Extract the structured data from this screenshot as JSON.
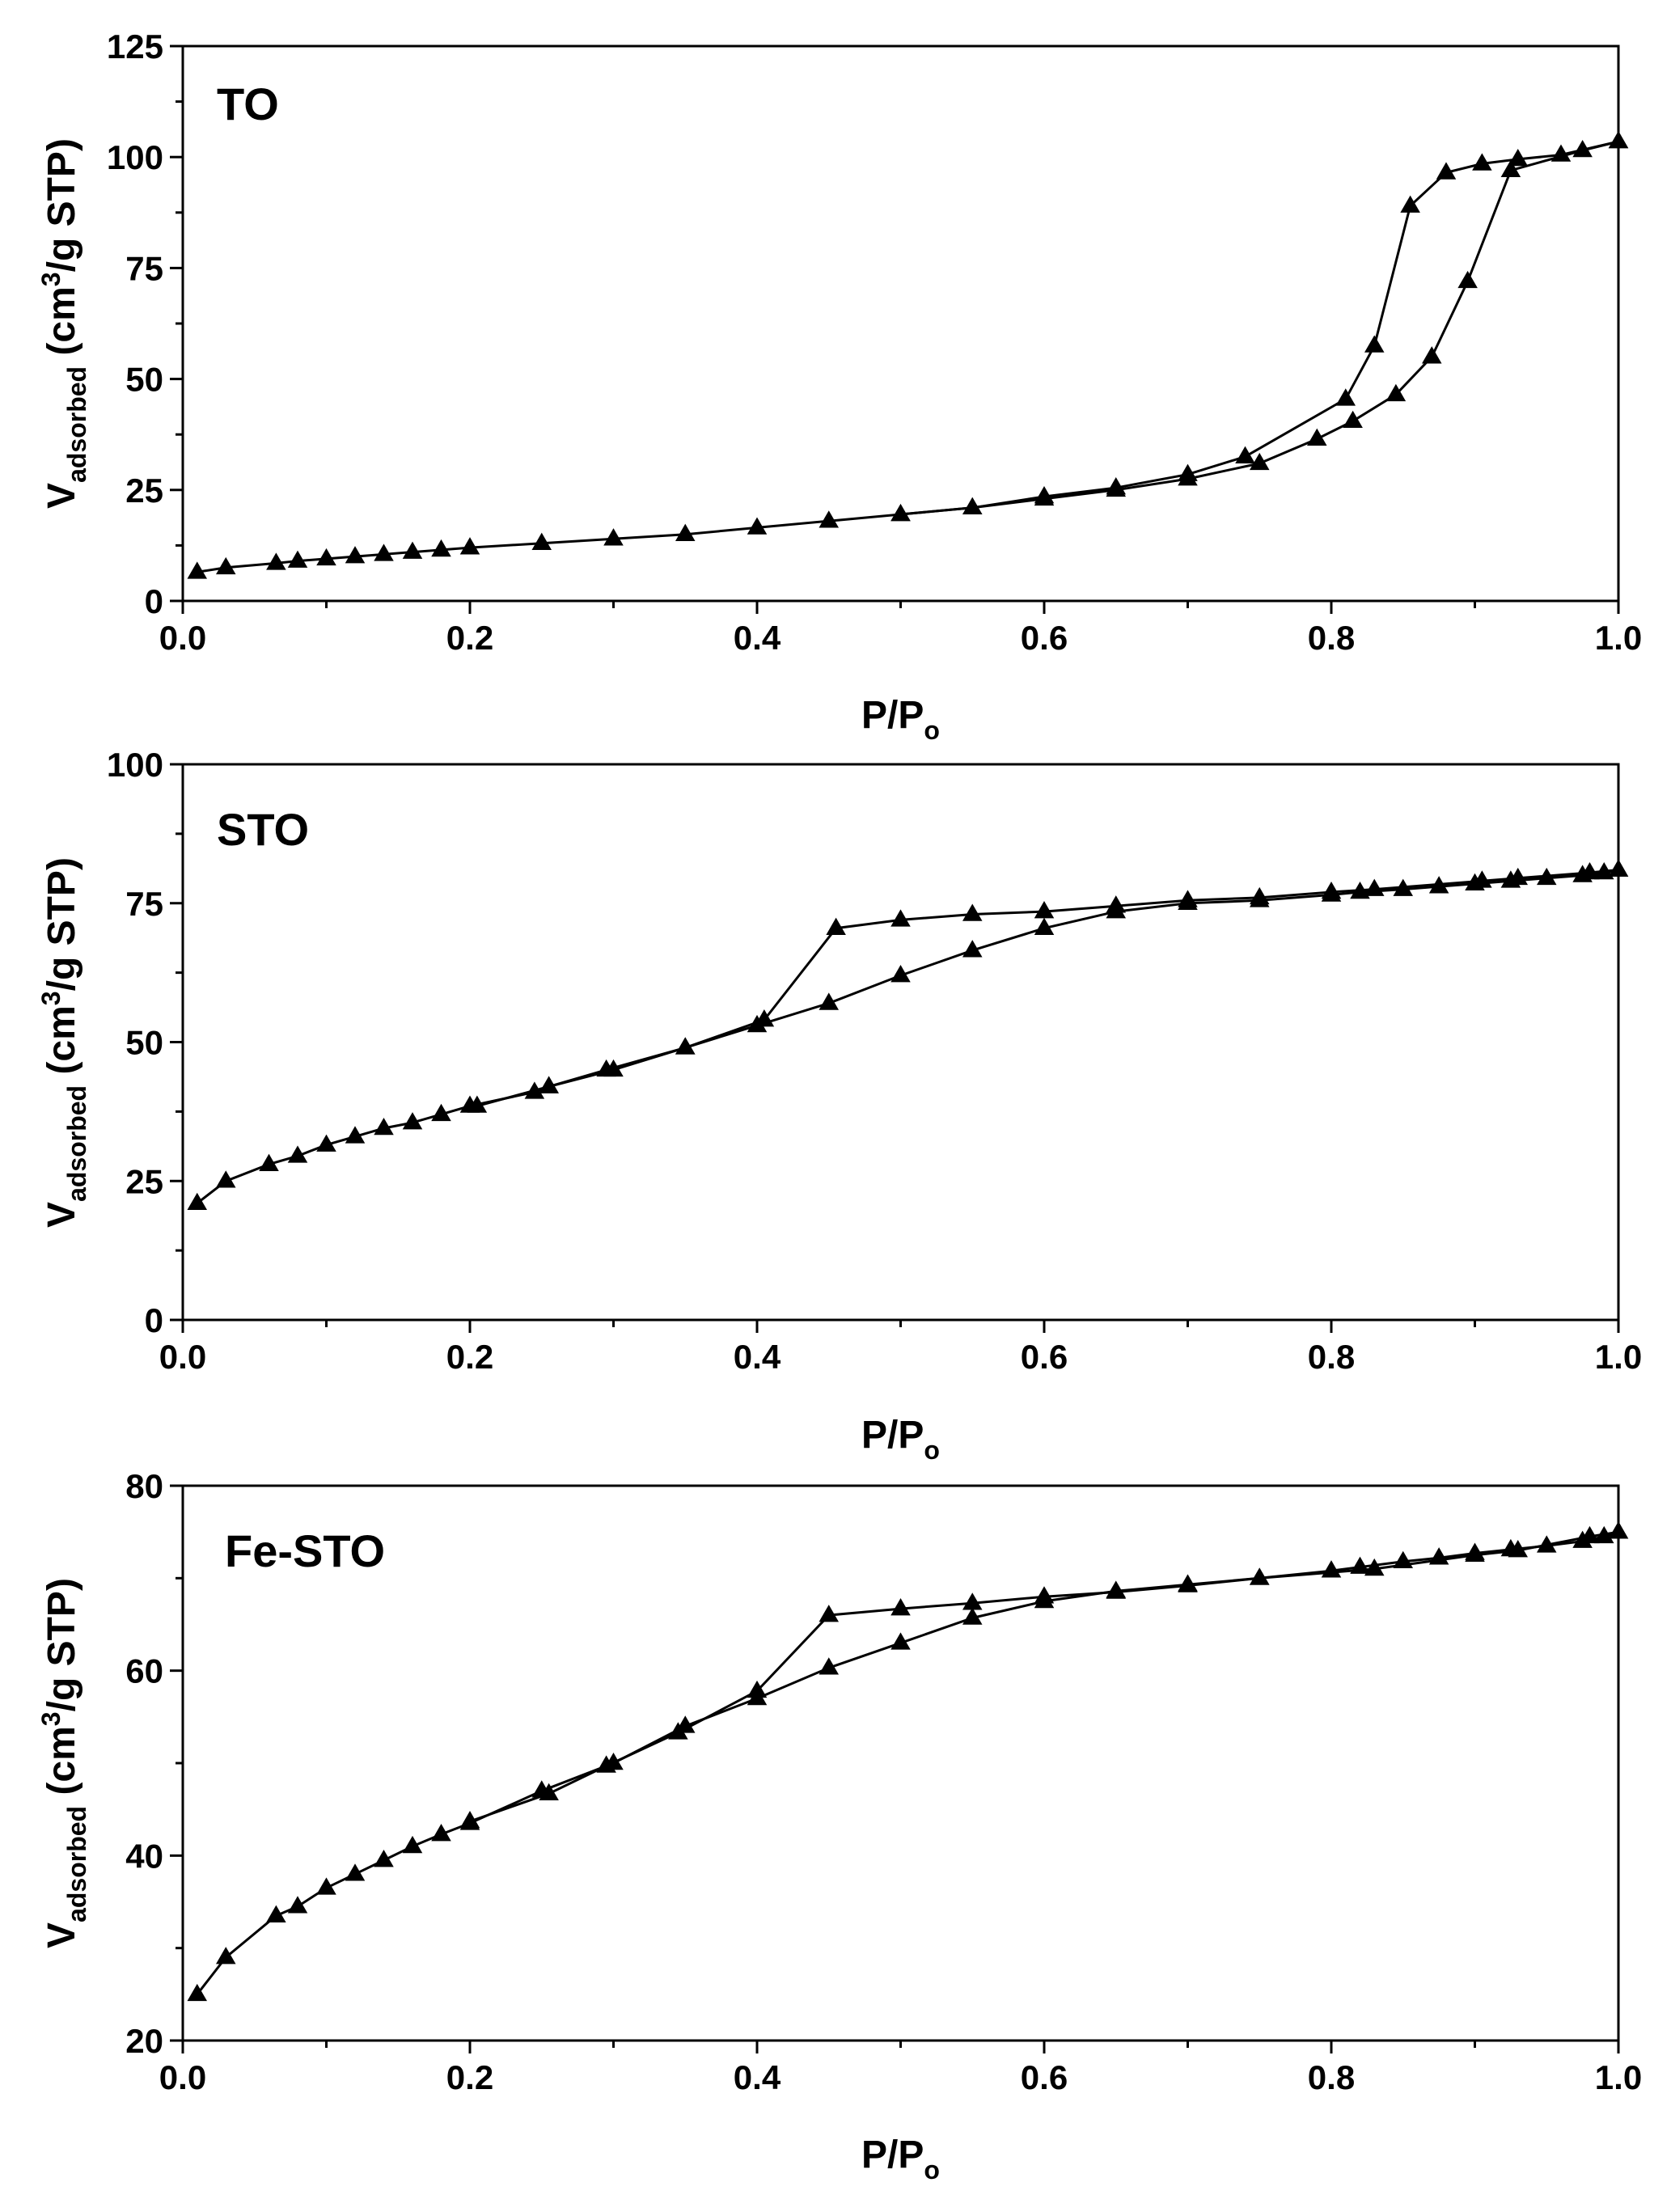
{
  "chart_data": [
    {
      "type": "line",
      "title": "",
      "label": "TO",
      "xlabel": "P/P",
      "xlabel_sub": "o",
      "ylabel_main": "V",
      "ylabel_sub": "adsorbed",
      "ylabel_rest": " (cm",
      "ylabel_sup": "3",
      "ylabel_end": "/g STP)",
      "xlim": [
        0,
        1.0
      ],
      "ylim": [
        0,
        125
      ],
      "xticks": [
        "0.0",
        "0.2",
        "0.4",
        "0.6",
        "0.8",
        "1.0"
      ],
      "yticks": [
        "0",
        "25",
        "50",
        "75",
        "100",
        "125"
      ],
      "marker": "triangle",
      "color": "#000000",
      "series": [
        {
          "x": [
            0.01,
            0.03,
            0.065,
            0.08,
            0.1,
            0.12,
            0.14,
            0.16,
            0.18,
            0.2,
            0.25,
            0.3,
            0.35,
            0.4,
            0.45,
            0.5,
            0.55,
            0.6,
            0.65,
            0.7,
            0.75,
            0.79,
            0.815,
            0.845,
            0.87,
            0.895,
            0.925,
            0.975,
            1.0
          ],
          "y": [
            6.5,
            7.5,
            8.5,
            9,
            9.5,
            10,
            10.5,
            11,
            11.5,
            12,
            13,
            14,
            15,
            16.5,
            18,
            19.5,
            21,
            23,
            25,
            27.5,
            31,
            36.5,
            40.5,
            46.5,
            55,
            72,
            97,
            101.5,
            103.5
          ]
        },
        {
          "x": [
            1.0,
            0.96,
            0.93,
            0.905,
            0.88,
            0.855,
            0.83,
            0.81,
            0.74,
            0.7,
            0.65,
            0.6,
            0.55,
            0.5
          ],
          "y": [
            103.5,
            100.5,
            99.5,
            98.5,
            96.5,
            89,
            57.5,
            45.5,
            32.5,
            28.5,
            25.5,
            23.5,
            21,
            19.5
          ]
        }
      ]
    },
    {
      "type": "line",
      "title": "",
      "label": "STO",
      "xlabel": "P/P",
      "xlabel_sub": "o",
      "ylabel_main": "V",
      "ylabel_sub": "adsorbed",
      "ylabel_rest": " (cm",
      "ylabel_sup": "3",
      "ylabel_end": "/g STP)",
      "xlim": [
        0,
        1.0
      ],
      "ylim": [
        0,
        100
      ],
      "xticks": [
        "0.0",
        "0.2",
        "0.4",
        "0.6",
        "0.8",
        "1.0"
      ],
      "yticks": [
        "0",
        "25",
        "50",
        "75",
        "100"
      ],
      "marker": "triangle",
      "color": "#000000",
      "series": [
        {
          "x": [
            0.01,
            0.03,
            0.06,
            0.08,
            0.1,
            0.12,
            0.14,
            0.16,
            0.18,
            0.2,
            0.245,
            0.255,
            0.295,
            0.35,
            0.4,
            0.45,
            0.5,
            0.55,
            0.6,
            0.65,
            0.7,
            0.75,
            0.8,
            0.82,
            0.85,
            0.875,
            0.9,
            0.925,
            0.95,
            0.975,
            0.99,
            1.0
          ],
          "y": [
            21,
            25,
            28,
            29.5,
            31.5,
            33,
            34.5,
            35.5,
            37,
            38.5,
            41,
            42,
            45,
            49,
            53,
            57,
            62,
            66.5,
            70.5,
            73.5,
            75,
            75.5,
            76.5,
            77,
            77.5,
            78,
            78.5,
            79,
            79.5,
            80,
            80.5,
            81
          ]
        },
        {
          "x": [
            1.0,
            0.98,
            0.93,
            0.905,
            0.83,
            0.8,
            0.75,
            0.7,
            0.65,
            0.6,
            0.55,
            0.5,
            0.455,
            0.405,
            0.35,
            0.3,
            0.255,
            0.205
          ],
          "y": [
            81,
            80.5,
            79.5,
            79,
            77.5,
            77,
            76,
            75.5,
            74.5,
            73.5,
            73,
            72,
            70.5,
            54,
            49,
            45,
            42,
            38.5
          ]
        }
      ]
    },
    {
      "type": "line",
      "title": "",
      "label": "Fe-STO",
      "xlabel": "P/P",
      "xlabel_sub": "o",
      "ylabel_main": "V",
      "ylabel_sub": "adsorbed",
      "ylabel_rest": " (cm",
      "ylabel_sup": "3",
      "ylabel_end": "/g STP)",
      "xlim": [
        0,
        1.0
      ],
      "ylim": [
        20,
        80
      ],
      "xticks": [
        "0.0",
        "0.2",
        "0.4",
        "0.6",
        "0.8",
        "1.0"
      ],
      "yticks": [
        "20",
        "40",
        "60",
        "80"
      ],
      "marker": "triangle",
      "color": "#000000",
      "series": [
        {
          "x": [
            0.01,
            0.03,
            0.065,
            0.08,
            0.1,
            0.12,
            0.14,
            0.16,
            0.18,
            0.2,
            0.25,
            0.3,
            0.35,
            0.4,
            0.45,
            0.5,
            0.55,
            0.6,
            0.65,
            0.7,
            0.75,
            0.8,
            0.82,
            0.85,
            0.875,
            0.9,
            0.925,
            0.95,
            0.975,
            0.99,
            1.0
          ],
          "y": [
            25,
            29,
            33.5,
            34.5,
            36.5,
            38,
            39.5,
            41,
            42.3,
            43.5,
            47,
            50,
            54,
            57,
            60.3,
            63,
            65.7,
            67.5,
            68.6,
            69.3,
            70,
            70.8,
            71.2,
            71.8,
            72.2,
            72.7,
            73.1,
            73.5,
            74,
            74.5,
            75
          ]
        },
        {
          "x": [
            1.0,
            0.98,
            0.93,
            0.9,
            0.83,
            0.75,
            0.7,
            0.65,
            0.6,
            0.55,
            0.5,
            0.45,
            0.4,
            0.345,
            0.295,
            0.255,
            0.2
          ],
          "y": [
            75,
            74.5,
            73,
            72.5,
            71,
            70,
            69.2,
            68.5,
            68,
            67.3,
            66.7,
            66,
            57.8,
            53.3,
            49.7,
            46.7,
            43.7
          ]
        }
      ]
    }
  ]
}
